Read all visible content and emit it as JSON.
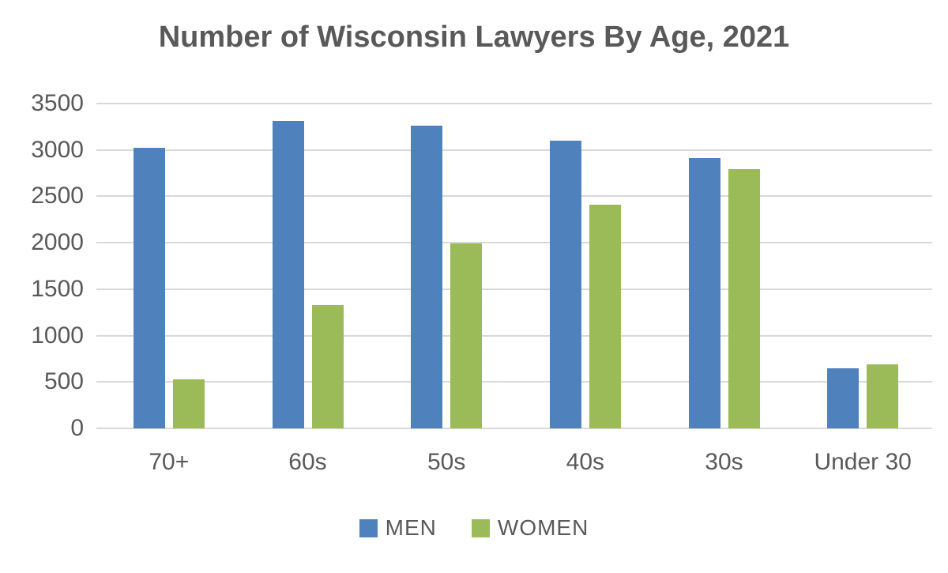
{
  "chart_data": {
    "type": "bar",
    "title": "Number of Wisconsin Lawyers By Age, 2021",
    "categories": [
      "70+",
      "60s",
      "50s",
      "40s",
      "30s",
      "Under 30"
    ],
    "series": [
      {
        "name": "MEN",
        "color": "#4f81bd",
        "values": [
          3020,
          3310,
          3260,
          3100,
          2910,
          650
        ]
      },
      {
        "name": "WOMEN",
        "color": "#9bbb59",
        "values": [
          530,
          1330,
          1990,
          2410,
          2790,
          690
        ]
      }
    ],
    "xlabel": "",
    "ylabel": "",
    "ylim": [
      0,
      3500
    ],
    "ytick_interval": 500,
    "ytick_labels": [
      "3500",
      "3000",
      "2500",
      "2000",
      "1500",
      "1000",
      "500",
      "0"
    ],
    "grid": "horizontal",
    "gridline_color": "#d9d9d9",
    "legend_position": "bottom",
    "text_color": "#595959",
    "background_color": "#ffffff"
  }
}
